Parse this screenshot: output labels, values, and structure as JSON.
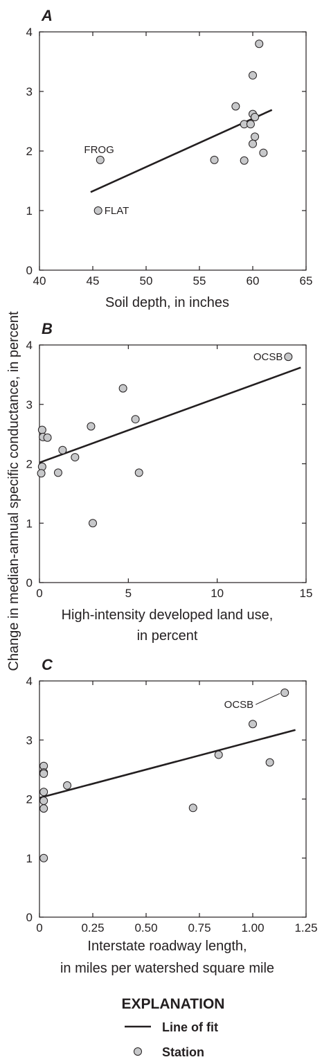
{
  "shared_ylabel": "Change in median-annual specific conductance, in percent",
  "legend": {
    "title": "EXPLANATION",
    "line_label": "Line of fit",
    "point_label": "Station"
  },
  "chart_data": [
    {
      "type": "scatter",
      "panel": "A",
      "xlabel": [
        "Soil depth, in inches"
      ],
      "xlim": [
        40,
        65
      ],
      "ylim": [
        0,
        4
      ],
      "xticks": [
        40,
        45,
        50,
        55,
        60,
        65
      ],
      "xtick_labels": [
        "40",
        "45",
        "50",
        "55",
        "60",
        "65"
      ],
      "yticks": [
        0,
        1,
        2,
        3,
        4
      ],
      "grid": false,
      "points": [
        {
          "x": 45.7,
          "y": 1.85
        },
        {
          "x": 45.5,
          "y": 1.0
        },
        {
          "x": 56.4,
          "y": 1.85
        },
        {
          "x": 58.4,
          "y": 2.75
        },
        {
          "x": 59.2,
          "y": 2.45
        },
        {
          "x": 59.2,
          "y": 1.84
        },
        {
          "x": 59.8,
          "y": 2.45
        },
        {
          "x": 60.0,
          "y": 3.27
        },
        {
          "x": 60.0,
          "y": 2.62
        },
        {
          "x": 60.2,
          "y": 2.57
        },
        {
          "x": 60.2,
          "y": 2.24
        },
        {
          "x": 60.0,
          "y": 2.12
        },
        {
          "x": 60.6,
          "y": 3.8
        },
        {
          "x": 61.0,
          "y": 1.97
        }
      ],
      "fit_line": {
        "x": [
          44.8,
          61.8
        ],
        "y": [
          1.31,
          2.69
        ]
      },
      "annotations": [
        {
          "text": "FROG",
          "x": 45.7,
          "y": 1.85
        },
        {
          "text": "FLAT",
          "x": 45.5,
          "y": 1.0
        }
      ]
    },
    {
      "type": "scatter",
      "panel": "B",
      "xlabel": [
        "High-intensity developed land use,",
        "in percent"
      ],
      "xlim": [
        0,
        15
      ],
      "ylim": [
        0,
        4
      ],
      "xticks": [
        0,
        5,
        10,
        15
      ],
      "xtick_labels": [
        "0",
        "5",
        "10",
        "15"
      ],
      "yticks": [
        0,
        1,
        2,
        3,
        4
      ],
      "grid": false,
      "points": [
        {
          "x": 0.15,
          "y": 2.57
        },
        {
          "x": 0.2,
          "y": 2.45
        },
        {
          "x": 0.45,
          "y": 2.44
        },
        {
          "x": 0.15,
          "y": 1.95
        },
        {
          "x": 0.1,
          "y": 1.84
        },
        {
          "x": 1.05,
          "y": 1.85
        },
        {
          "x": 1.3,
          "y": 2.23
        },
        {
          "x": 2.0,
          "y": 2.11
        },
        {
          "x": 2.9,
          "y": 2.63
        },
        {
          "x": 3.0,
          "y": 1.0
        },
        {
          "x": 4.7,
          "y": 3.27
        },
        {
          "x": 5.4,
          "y": 2.75
        },
        {
          "x": 5.6,
          "y": 1.85
        },
        {
          "x": 14.0,
          "y": 3.8
        }
      ],
      "fit_line": {
        "x": [
          0,
          14.7
        ],
        "y": [
          2.02,
          3.62
        ]
      },
      "annotations": [
        {
          "text": "OCSB",
          "x": 14.0,
          "y": 3.8
        }
      ]
    },
    {
      "type": "scatter",
      "panel": "C",
      "xlabel": [
        "Interstate roadway length,",
        "in miles per watershed square mile"
      ],
      "xlim": [
        0,
        1.25
      ],
      "ylim": [
        0,
        4
      ],
      "xticks": [
        0,
        0.25,
        0.5,
        0.75,
        1.0,
        1.25
      ],
      "xtick_labels": [
        "0",
        "0.25",
        "0.50",
        "0.75",
        "1.00",
        "1.25"
      ],
      "yticks": [
        0,
        1,
        2,
        3,
        4
      ],
      "grid": false,
      "points": [
        {
          "x": 0.02,
          "y": 2.56
        },
        {
          "x": 0.02,
          "y": 2.45
        },
        {
          "x": 0.02,
          "y": 2.43
        },
        {
          "x": 0.02,
          "y": 2.12
        },
        {
          "x": 0.02,
          "y": 1.97
        },
        {
          "x": 0.02,
          "y": 1.84
        },
        {
          "x": 0.02,
          "y": 1.0
        },
        {
          "x": 0.13,
          "y": 2.23
        },
        {
          "x": 0.72,
          "y": 1.85
        },
        {
          "x": 0.84,
          "y": 2.75
        },
        {
          "x": 1.0,
          "y": 3.27
        },
        {
          "x": 1.08,
          "y": 2.62
        },
        {
          "x": 1.15,
          "y": 3.8
        }
      ],
      "fit_line": {
        "x": [
          0,
          1.2
        ],
        "y": [
          2.02,
          3.17
        ]
      },
      "annotations": [
        {
          "text": "OCSB",
          "x": 1.15,
          "y": 3.8,
          "leader": true
        }
      ]
    }
  ]
}
